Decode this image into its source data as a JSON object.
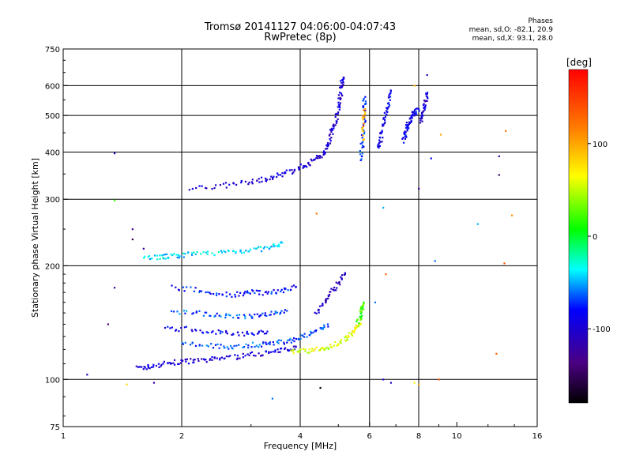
{
  "header": {
    "title_line1": "Tromsø 20141127 04:06:00-04:07:43",
    "title_line2": "RwPretec (8p)",
    "stats_heading": "Phases",
    "stats_o": "mean, sd,O: -82.1, 20.9",
    "stats_x": "mean, sd,X: 93.1, 28.0"
  },
  "chart_data": {
    "type": "scatter",
    "xlabel": "Frequency [MHz]",
    "ylabel": "Stationary phase Virtual Height [km]",
    "x_scale": "log",
    "y_scale": "log",
    "xlim": [
      1,
      16
    ],
    "ylim": [
      75,
      750
    ],
    "x_ticks": [
      1,
      2,
      4,
      6,
      8,
      10,
      16
    ],
    "x_tick_labels": [
      "1",
      "2",
      "4",
      "6",
      "8",
      "10",
      "16"
    ],
    "y_ticks": [
      75,
      100,
      200,
      300,
      400,
      500,
      600,
      750
    ],
    "y_tick_labels": [
      "75",
      "100",
      "200",
      "300",
      "400",
      "500",
      "600",
      "750"
    ],
    "x_gridlines": [
      2,
      4,
      6,
      8
    ],
    "y_gridlines": [
      100,
      200,
      300,
      400,
      500,
      600
    ],
    "colorbar": {
      "label": "[deg]",
      "range": [
        -180,
        180
      ],
      "ticks": [
        100,
        0,
        -100
      ],
      "tick_labels": [
        "100",
        "0",
        "-100"
      ],
      "colors": [
        "#000000",
        "#4b0082",
        "#0000ff",
        "#00ffff",
        "#00ff00",
        "#ffff00",
        "#ff8000",
        "#ff0000"
      ]
    },
    "traces": [
      {
        "name": "",
        "phase": -100,
        "x": [
          1.55,
          1.65,
          1.8,
          1.95,
          2.1,
          2.3,
          2.5,
          2.8,
          3.1,
          3.4,
          3.7,
          3.9
        ],
        "y": [
          107,
          108,
          110,
          111,
          112,
          112,
          114,
          115,
          117,
          118,
          120,
          122
        ]
      },
      {
        "name": "",
        "phase": -40,
        "x": [
          1.6,
          1.75,
          1.85,
          2.0,
          2.2,
          2.5,
          2.8,
          3.1,
          3.4,
          3.6
        ],
        "y": [
          211,
          211,
          212,
          213,
          215,
          217,
          219,
          221,
          224,
          230
        ]
      },
      {
        "name": "",
        "phase": -100,
        "x": [
          2.1,
          2.5,
          2.9,
          3.2,
          3.4,
          3.7,
          4.0,
          4.2,
          4.4,
          4.6
        ],
        "y": [
          320,
          325,
          332,
          338,
          343,
          352,
          364,
          374,
          385,
          395
        ]
      },
      {
        "name": "",
        "phase": -100,
        "x": [
          4.6,
          4.7,
          4.8,
          4.9,
          5.0,
          5.05,
          5.1,
          5.15
        ],
        "y": [
          400,
          420,
          450,
          480,
          520,
          560,
          600,
          630
        ]
      },
      {
        "name": "",
        "phase": -80,
        "x": [
          1.9,
          2.2,
          2.5,
          2.8,
          3.0,
          3.3,
          3.6,
          3.9
        ],
        "y": [
          176,
          172,
          168,
          168,
          170,
          170,
          172,
          176
        ]
      },
      {
        "name": "",
        "phase": -70,
        "x": [
          1.9,
          2.2,
          2.5,
          2.8,
          3.1,
          3.4,
          3.7
        ],
        "y": [
          152,
          150,
          148,
          146,
          148,
          150,
          152
        ]
      },
      {
        "name": "",
        "phase": -90,
        "x": [
          1.8,
          2.1,
          2.4,
          2.7,
          3.0,
          3.3
        ],
        "y": [
          136,
          136,
          134,
          132,
          132,
          134
        ]
      },
      {
        "name": "",
        "phase": -70,
        "x": [
          2.0,
          2.3,
          2.6,
          2.9,
          3.2,
          3.5,
          3.8,
          4.1,
          4.4,
          4.7
        ],
        "y": [
          124,
          123,
          122,
          123,
          124,
          125,
          127,
          130,
          134,
          140
        ]
      },
      {
        "name": "",
        "phase": 60,
        "x": [
          3.8,
          4.1,
          4.4,
          4.7,
          5.0,
          5.3,
          5.5,
          5.7
        ],
        "y": [
          118,
          119,
          120,
          122,
          125,
          130,
          135,
          140
        ]
      },
      {
        "name": "",
        "phase": 20,
        "x": [
          5.6,
          5.7,
          5.75,
          5.8
        ],
        "y": [
          142,
          148,
          155,
          160
        ]
      },
      {
        "name": "",
        "phase": -110,
        "x": [
          4.4,
          4.6,
          4.8,
          5.0,
          5.2
        ],
        "y": [
          150,
          160,
          170,
          180,
          190
        ]
      },
      {
        "name": "",
        "phase": -80,
        "x": [
          5.7,
          5.75,
          5.8,
          5.8,
          5.85
        ],
        "y": [
          380,
          420,
          470,
          520,
          560
        ]
      },
      {
        "name": "",
        "phase": 100,
        "x": [
          5.75,
          5.8,
          5.85
        ],
        "y": [
          430,
          480,
          520
        ]
      },
      {
        "name": "",
        "phase": -90,
        "x": [
          6.3,
          6.4,
          6.5,
          6.6,
          6.7,
          6.8
        ],
        "y": [
          410,
          430,
          470,
          500,
          540,
          580
        ]
      },
      {
        "name": "",
        "phase": -90,
        "x": [
          7.3,
          7.4,
          7.5,
          7.6,
          7.7,
          7.8,
          8.0
        ],
        "y": [
          430,
          450,
          470,
          480,
          500,
          510,
          520
        ]
      },
      {
        "name": "",
        "phase": -100,
        "x": [
          8.1,
          8.2,
          8.3,
          8.4
        ],
        "y": [
          480,
          510,
          540,
          570
        ]
      }
    ],
    "points": [
      {
        "x": 1.15,
        "y": 103,
        "phase": -110
      },
      {
        "x": 1.35,
        "y": 397,
        "phase": -100
      },
      {
        "x": 1.35,
        "y": 298,
        "phase": 20
      },
      {
        "x": 1.5,
        "y": 235,
        "phase": -150
      },
      {
        "x": 1.5,
        "y": 250,
        "phase": -130
      },
      {
        "x": 1.6,
        "y": 222,
        "phase": -120
      },
      {
        "x": 1.45,
        "y": 97,
        "phase": 80
      },
      {
        "x": 1.35,
        "y": 175,
        "phase": -130
      },
      {
        "x": 1.3,
        "y": 140,
        "phase": -140
      },
      {
        "x": 1.7,
        "y": 98,
        "phase": -120
      },
      {
        "x": 3.4,
        "y": 89,
        "phase": -60
      },
      {
        "x": 4.5,
        "y": 95,
        "phase": -180
      },
      {
        "x": 6.5,
        "y": 100,
        "phase": -100
      },
      {
        "x": 6.8,
        "y": 98,
        "phase": -110
      },
      {
        "x": 7.8,
        "y": 98,
        "phase": 60
      },
      {
        "x": 8.0,
        "y": 97,
        "phase": 100
      },
      {
        "x": 9.0,
        "y": 100,
        "phase": 140
      },
      {
        "x": 8.8,
        "y": 206,
        "phase": -60
      },
      {
        "x": 8.0,
        "y": 320,
        "phase": -130
      },
      {
        "x": 8.6,
        "y": 385,
        "phase": -90
      },
      {
        "x": 9.1,
        "y": 445,
        "phase": 100
      },
      {
        "x": 11.3,
        "y": 258,
        "phase": -50
      },
      {
        "x": 12.8,
        "y": 390,
        "phase": -120
      },
      {
        "x": 12.8,
        "y": 348,
        "phase": -150
      },
      {
        "x": 13.8,
        "y": 272,
        "phase": 110
      },
      {
        "x": 13.3,
        "y": 455,
        "phase": 120
      },
      {
        "x": 12.6,
        "y": 117,
        "phase": 130
      },
      {
        "x": 13.2,
        "y": 203,
        "phase": 140
      },
      {
        "x": 8.4,
        "y": 640,
        "phase": -110
      },
      {
        "x": 7.8,
        "y": 600,
        "phase": 90
      },
      {
        "x": 6.5,
        "y": 285,
        "phase": -50
      },
      {
        "x": 6.2,
        "y": 160,
        "phase": -60
      },
      {
        "x": 6.6,
        "y": 190,
        "phase": 130
      },
      {
        "x": 4.4,
        "y": 275,
        "phase": 120
      }
    ]
  }
}
